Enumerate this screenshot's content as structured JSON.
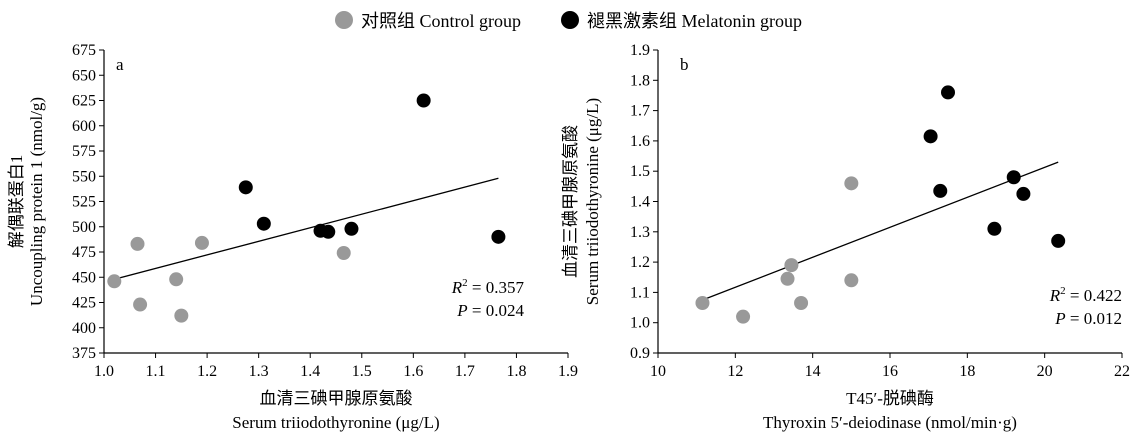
{
  "legend": [
    {
      "label": "对照组 Control group",
      "color": "#999999"
    },
    {
      "label": "褪黑激素组 Melatonin group",
      "color": "#000000"
    }
  ],
  "chart_data": [
    {
      "type": "scatter",
      "panel_label": "a",
      "xlabel": [
        "血清三碘甲腺原氨酸",
        "Serum triiodothyronine (μg/L)"
      ],
      "ylabel": [
        "解偶联蛋白1",
        "Uncoupling protein 1 (nmol/g)"
      ],
      "xlim": [
        1.0,
        1.9
      ],
      "ylim": [
        375,
        675
      ],
      "xticks": [
        1.0,
        1.1,
        1.2,
        1.3,
        1.4,
        1.5,
        1.6,
        1.7,
        1.8,
        1.9
      ],
      "xtick_labels": [
        "1.0",
        "1.1",
        "1.2",
        "1.3",
        "1.4",
        "1.5",
        "1.6",
        "1.7",
        "1.8",
        "1.9"
      ],
      "yticks": [
        375,
        400,
        425,
        450,
        475,
        500,
        525,
        550,
        575,
        600,
        625,
        650,
        675
      ],
      "ytick_labels": [
        "375",
        "400",
        "425",
        "450",
        "475",
        "500",
        "525",
        "550",
        "575",
        "600",
        "625",
        "650",
        "675"
      ],
      "series": [
        {
          "name": "对照组 Control group",
          "color": "#999999",
          "x": [
            1.02,
            1.065,
            1.07,
            1.14,
            1.15,
            1.19,
            1.465
          ],
          "y": [
            446,
            483,
            423,
            448,
            412,
            484,
            474
          ]
        },
        {
          "name": "褪黑激素组 Melatonin group",
          "color": "#000000",
          "x": [
            1.275,
            1.31,
            1.42,
            1.435,
            1.48,
            1.62,
            1.765
          ],
          "y": [
            539,
            503,
            496,
            495,
            498,
            625,
            490
          ]
        }
      ],
      "fit_line": {
        "x": [
          1.02,
          1.765
        ],
        "y": [
          448,
          548
        ]
      },
      "annotations": [
        {
          "var": "R",
          "sup": "2",
          "text": " = 0.357"
        },
        {
          "var": "P",
          "sup": "",
          "text": " = 0.024"
        }
      ]
    },
    {
      "type": "scatter",
      "panel_label": "b",
      "xlabel": [
        "T45′-脱碘酶",
        "Thyroxin 5′-deiodinase (nmol/min·g)"
      ],
      "ylabel": [
        "血清三碘甲腺原氨酸",
        "Serum triiodothyronine (μg/L)"
      ],
      "xlim": [
        10,
        22
      ],
      "ylim": [
        0.9,
        1.9
      ],
      "xticks": [
        10,
        12,
        14,
        16,
        18,
        20,
        22
      ],
      "xtick_labels": [
        "10",
        "12",
        "14",
        "16",
        "18",
        "20",
        "22"
      ],
      "yticks": [
        0.9,
        1.0,
        1.1,
        1.2,
        1.3,
        1.4,
        1.5,
        1.6,
        1.7,
        1.8,
        1.9
      ],
      "ytick_labels": [
        "0.9",
        "1.0",
        "1.1",
        "1.2",
        "1.3",
        "1.4",
        "1.5",
        "1.6",
        "1.7",
        "1.8",
        "1.9"
      ],
      "series": [
        {
          "name": "对照组 Control group",
          "color": "#999999",
          "x": [
            11.15,
            12.2,
            13.35,
            13.45,
            13.7,
            15.0,
            15.0
          ],
          "y": [
            1.065,
            1.02,
            1.145,
            1.19,
            1.065,
            1.46,
            1.14
          ]
        },
        {
          "name": "褪黑激素组 Melatonin group",
          "color": "#000000",
          "x": [
            17.05,
            17.3,
            17.5,
            18.7,
            19.2,
            19.45,
            20.35
          ],
          "y": [
            1.615,
            1.435,
            1.76,
            1.31,
            1.48,
            1.425,
            1.27
          ]
        }
      ],
      "fit_line": {
        "x": [
          11.15,
          20.35
        ],
        "y": [
          1.075,
          1.53
        ]
      },
      "annotations": [
        {
          "var": "R",
          "sup": "2",
          "text": " = 0.422"
        },
        {
          "var": "P",
          "sup": "",
          "text": " = 0.012"
        }
      ]
    }
  ]
}
